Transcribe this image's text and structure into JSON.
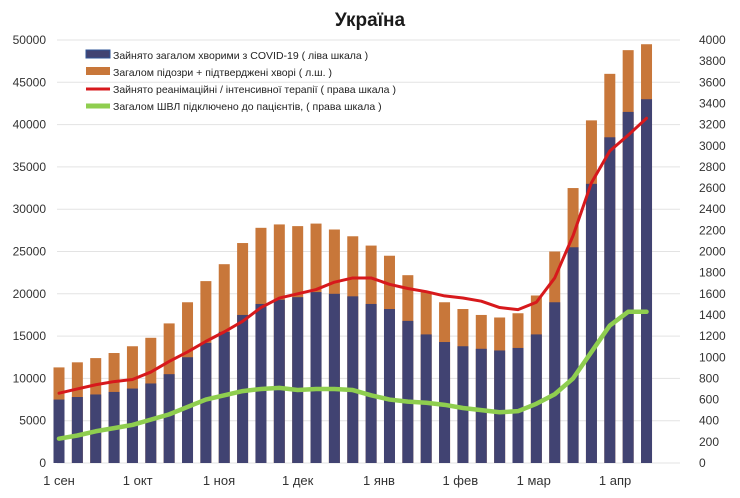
{
  "chart_data": {
    "type": "bar",
    "title": "Україна",
    "x_tick_labels": [
      "1 сен",
      "1 окт",
      "1 ноя",
      "1 дек",
      "1 янв",
      "1 фев",
      "1 мар",
      "1 апр"
    ],
    "y_left_ticks": [
      "50000",
      "45000",
      "40000",
      "35000",
      "30000",
      "25000",
      "20000",
      "15000",
      "10000",
      "5000",
      "0"
    ],
    "y_right_ticks": [
      "4000",
      "3800",
      "3600",
      "3400",
      "3200",
      "3000",
      "2800",
      "2600",
      "2400",
      "2200",
      "2000",
      "1800",
      "1600",
      "1400",
      "1200",
      "1000",
      "800",
      "600",
      "400",
      "200",
      "0"
    ],
    "ylim_left": [
      0,
      50000
    ],
    "ylim_right": [
      0,
      4000
    ],
    "grid": true,
    "legend_position": "top-left",
    "days_per_sample": 7,
    "sample_labels": [
      "1 сен",
      "8 сен",
      "15 сен",
      "22 сен",
      "29 сен",
      "6 окт",
      "13 окт",
      "20 окт",
      "27 окт",
      "3 ноя",
      "10 ноя",
      "17 ноя",
      "24 ноя",
      "1 дек",
      "8 дек",
      "15 дек",
      "22 дек",
      "29 дек",
      "5 янв",
      "12 янв",
      "19 янв",
      "26 янв",
      "2 фев",
      "9 фев",
      "16 фев",
      "23 фев",
      "2 мар",
      "9 мар",
      "16 мар",
      "23 мар",
      "30 мар",
      "6 апр",
      "11 апр"
    ],
    "series": [
      {
        "name": "Зайнято загалом хворими з COVID-19 ( ліва шкала )",
        "axis": "left",
        "render": "bars",
        "color": "#414372",
        "values": [
          7500,
          7800,
          8100,
          8400,
          8800,
          9400,
          10500,
          12500,
          14200,
          15500,
          17500,
          18800,
          19300,
          19600,
          20200,
          20000,
          19700,
          18800,
          18200,
          16800,
          15200,
          14300,
          13800,
          13500,
          13300,
          13600,
          15200,
          19000,
          25500,
          33000,
          38500,
          41500,
          43000
        ]
      },
      {
        "name": "Загалом підозри + підтверджені хворі ( л.ш. )",
        "axis": "left",
        "render": "bars",
        "color": "#c8773a",
        "values": [
          11300,
          11900,
          12400,
          13000,
          13800,
          14800,
          16500,
          19000,
          21500,
          23500,
          26000,
          27800,
          28200,
          28000,
          28300,
          27600,
          26800,
          25700,
          24500,
          22200,
          20200,
          19000,
          18200,
          17500,
          17200,
          17700,
          19800,
          25000,
          32500,
          40500,
          46000,
          48800,
          49500
        ]
      },
      {
        "name": "Зайнято реанімаційні / інтенсивної терапії ( права шкала )",
        "axis": "right",
        "render": "line",
        "color": "#d7191c",
        "values": [
          660,
          700,
          740,
          770,
          790,
          860,
          960,
          1050,
          1150,
          1240,
          1340,
          1470,
          1560,
          1600,
          1640,
          1710,
          1750,
          1750,
          1690,
          1650,
          1620,
          1580,
          1560,
          1530,
          1470,
          1450,
          1520,
          1750,
          2150,
          2650,
          2950,
          3100,
          3260
        ]
      },
      {
        "name": "Загалом ШВЛ  підключено до пацієнтів, ( права шкала )",
        "axis": "right",
        "render": "line",
        "color": "#8fce4f",
        "values": [
          230,
          260,
          300,
          330,
          360,
          410,
          460,
          530,
          600,
          640,
          680,
          700,
          710,
          690,
          700,
          700,
          690,
          640,
          600,
          580,
          570,
          550,
          520,
          500,
          480,
          490,
          560,
          650,
          800,
          1050,
          1300,
          1430,
          1430
        ]
      }
    ]
  }
}
